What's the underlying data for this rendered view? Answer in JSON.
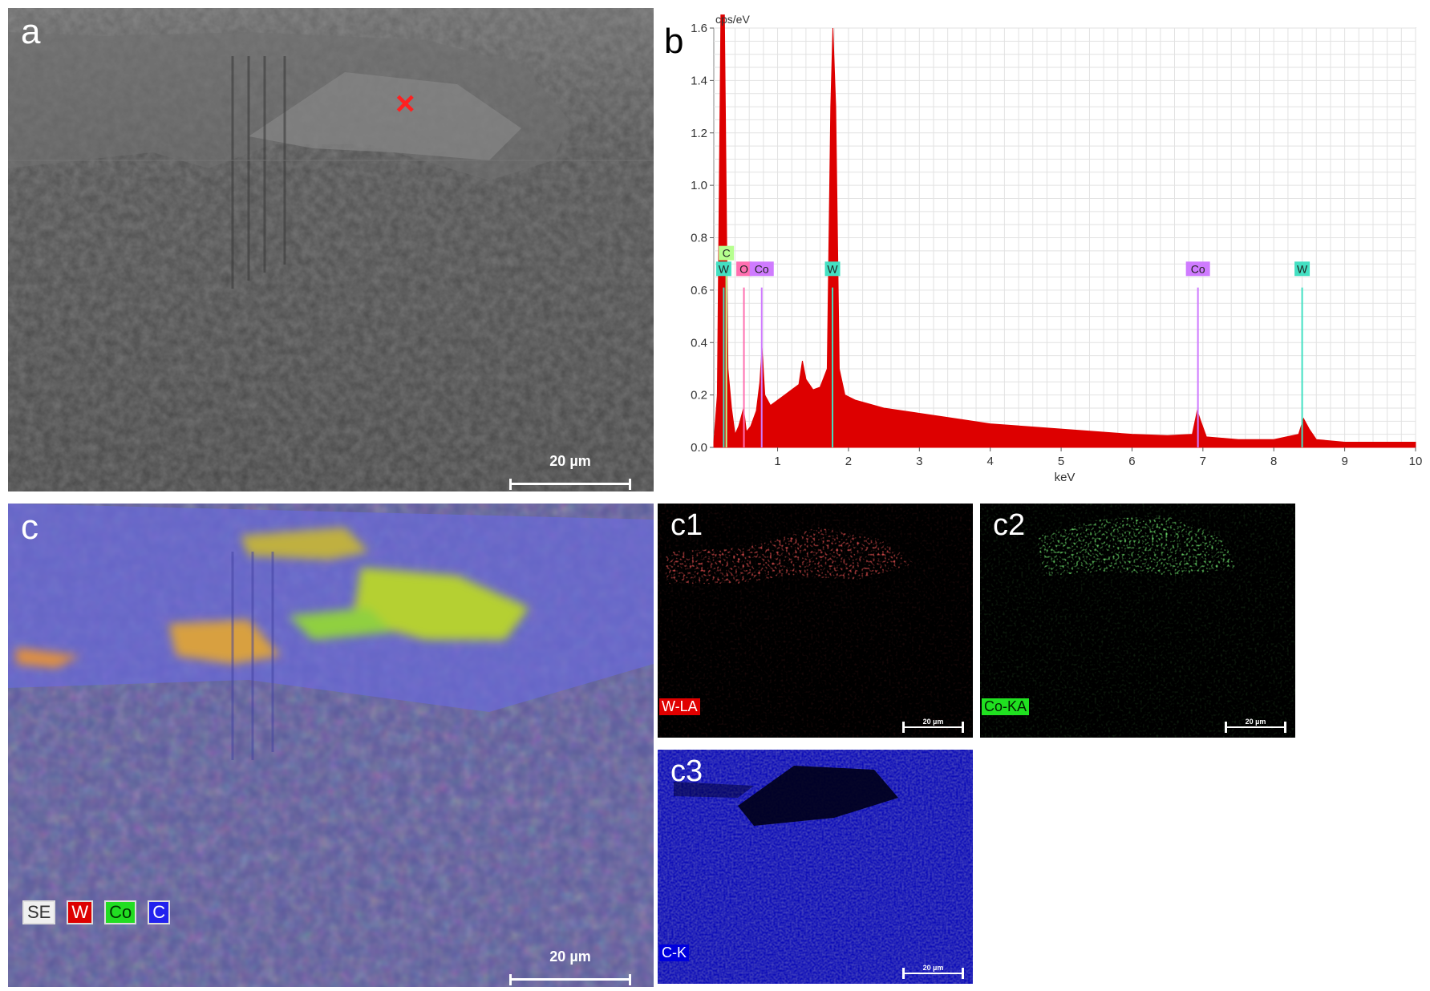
{
  "panel_a": {
    "label": "a",
    "scalebar": "20 µm",
    "marker": "×"
  },
  "panel_b": {
    "label": "b",
    "chart_data": {
      "type": "line",
      "title": "",
      "xlabel": "keV",
      "ylabel": "cps/eV",
      "xlim": [
        0,
        10
      ],
      "ylim": [
        0,
        1.6
      ],
      "x_ticks": [
        "1",
        "2",
        "3",
        "4",
        "5",
        "6",
        "7",
        "8",
        "9",
        "10"
      ],
      "y_ticks": [
        "0.0",
        "0.2",
        "0.4",
        "0.6",
        "0.8",
        "1.0",
        "1.2",
        "1.4",
        "1.6"
      ],
      "grid": true,
      "series": [
        {
          "points": [
            [
              0.1,
              0.02
            ],
            [
              0.15,
              0.2
            ],
            [
              0.2,
              1.7
            ],
            [
              0.25,
              1.7
            ],
            [
              0.3,
              0.3
            ],
            [
              0.35,
              0.15
            ],
            [
              0.4,
              0.05
            ],
            [
              0.45,
              0.08
            ],
            [
              0.52,
              0.15
            ],
            [
              0.56,
              0.06
            ],
            [
              0.62,
              0.08
            ],
            [
              0.7,
              0.14
            ],
            [
              0.75,
              0.25
            ],
            [
              0.78,
              0.38
            ],
            [
              0.82,
              0.2
            ],
            [
              0.9,
              0.16
            ],
            [
              1.0,
              0.18
            ],
            [
              1.1,
              0.2
            ],
            [
              1.2,
              0.22
            ],
            [
              1.3,
              0.24
            ],
            [
              1.35,
              0.33
            ],
            [
              1.4,
              0.26
            ],
            [
              1.5,
              0.22
            ],
            [
              1.6,
              0.23
            ],
            [
              1.7,
              0.3
            ],
            [
              1.75,
              1.3
            ],
            [
              1.78,
              1.6
            ],
            [
              1.82,
              1.3
            ],
            [
              1.87,
              0.3
            ],
            [
              1.95,
              0.2
            ],
            [
              2.1,
              0.18
            ],
            [
              2.5,
              0.15
            ],
            [
              3.0,
              0.13
            ],
            [
              3.5,
              0.11
            ],
            [
              4.0,
              0.09
            ],
            [
              4.5,
              0.08
            ],
            [
              5.0,
              0.07
            ],
            [
              5.5,
              0.06
            ],
            [
              6.0,
              0.05
            ],
            [
              6.5,
              0.045
            ],
            [
              6.85,
              0.05
            ],
            [
              6.92,
              0.14
            ],
            [
              6.97,
              0.1
            ],
            [
              7.05,
              0.04
            ],
            [
              7.5,
              0.03
            ],
            [
              8.0,
              0.03
            ],
            [
              8.35,
              0.05
            ],
            [
              8.42,
              0.11
            ],
            [
              8.5,
              0.07
            ],
            [
              8.6,
              0.03
            ],
            [
              9.0,
              0.02
            ],
            [
              9.5,
              0.02
            ],
            [
              10.0,
              0.02
            ]
          ]
        }
      ],
      "peak_lines": [
        {
          "element": "C",
          "x": 0.277,
          "h": 0.72,
          "color": "#b6ff8f"
        },
        {
          "element": "W",
          "x": 0.24,
          "h": 0.66,
          "color": "#43e0c2"
        },
        {
          "element": "O",
          "x": 0.525,
          "h": 0.66,
          "color": "#ff6fb0"
        },
        {
          "element": "Co",
          "x": 0.776,
          "h": 0.66,
          "color": "#cf7bff"
        },
        {
          "element": "W",
          "x": 1.775,
          "h": 0.66,
          "color": "#43e0c2"
        },
        {
          "element": "Co",
          "x": 6.93,
          "h": 0.66,
          "color": "#cf7bff"
        },
        {
          "element": "W",
          "x": 8.4,
          "h": 0.66,
          "color": "#43e0c2"
        }
      ],
      "fill_color": "#dd0000"
    }
  },
  "panel_c": {
    "label": "c",
    "scalebar": "20 µm",
    "legend": [
      {
        "text": "SE",
        "bg": "#f0f0f0",
        "fg": "#333333"
      },
      {
        "text": "W",
        "bg": "#dd0000",
        "fg": "#ffffff"
      },
      {
        "text": "Co",
        "bg": "#22dd22",
        "fg": "#003300"
      },
      {
        "text": "C",
        "bg": "#2222ee",
        "fg": "#ffffff"
      }
    ]
  },
  "panel_c1": {
    "label": "c1",
    "element_label": "W-LA",
    "scalebar": "20 µm",
    "color": "#ff2020"
  },
  "panel_c2": {
    "label": "c2",
    "element_label": "Co-KA",
    "scalebar": "20 µm",
    "color": "#30ff30"
  },
  "panel_c3": {
    "label": "c3",
    "element_label": "C-K",
    "scalebar": "20 µm",
    "color": "#1a1aff"
  }
}
